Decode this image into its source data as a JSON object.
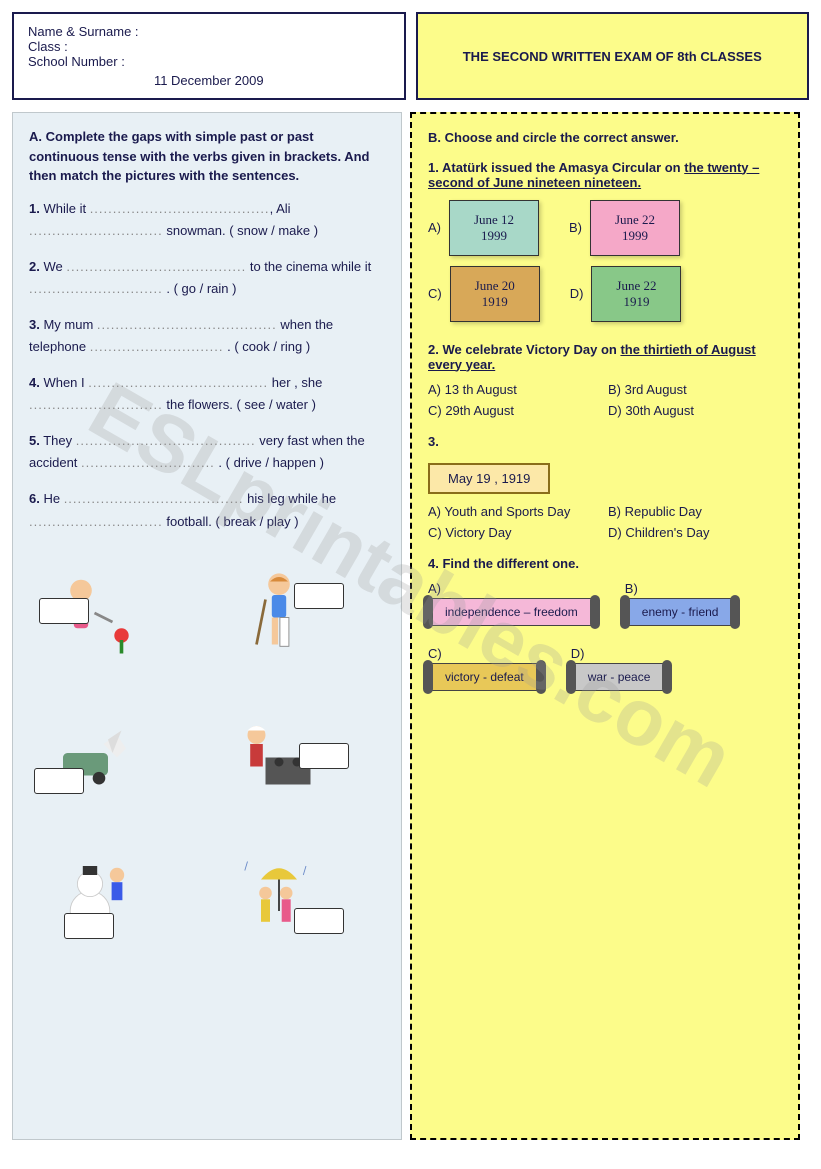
{
  "header": {
    "name_label": "Name & Surname :",
    "class_label": "Class :",
    "number_label": "School Number :",
    "date": "11  December  2009",
    "title": "THE  SECOND   WRITTEN  EXAM  OF  8th CLASSES"
  },
  "sectionA": {
    "title": "A. Complete  the  gaps  with simple past  or past continuous  tense  with  the  verbs given  in  brackets. And  then  match the pictures with the sentences.",
    "items": [
      {
        "n": "1.",
        "text_a": "While it ",
        "text_b": ", Ali ",
        "text_c": " snowman.  ( snow / make )"
      },
      {
        "n": "2.",
        "text_a": "We ",
        "text_b": " to the cinema while  it ",
        "text_c": " .   ( go / rain )"
      },
      {
        "n": "3.",
        "text_a": "My mum ",
        "text_b": " when the  telephone ",
        "text_c": " . ( cook / ring )"
      },
      {
        "n": "4.",
        "text_a": "When  I ",
        "text_b": " her , she ",
        "text_c": " the flowers. ( see / water )"
      },
      {
        "n": "5.",
        "text_a": "They ",
        "text_b": " very fast  when  the accident ",
        "text_c": " . ( drive / happen )"
      },
      {
        "n": "6.",
        "text_a": "He ",
        "text_b": " his leg  while  he ",
        "text_c": " football.  ( break / play )"
      }
    ]
  },
  "sectionB": {
    "title": "B.  Choose  and  circle  the  correct  answer.",
    "q1": {
      "text_a": "1.  Atatürk  issued  the Amasya  Circular on ",
      "text_u": "the twenty – second of June  nineteen nineteen.",
      "opts": [
        {
          "l": "A)",
          "d1": "June 12",
          "d2": "1999",
          "bg": "#a8d8c8"
        },
        {
          "l": "B)",
          "d1": "June 22",
          "d2": "1999",
          "bg": "#f5a8c8"
        },
        {
          "l": "C)",
          "d1": "June 20",
          "d2": "1919",
          "bg": "#d8a858"
        },
        {
          "l": "D)",
          "d1": "June 22",
          "d2": "1919",
          "bg": "#88c888"
        }
      ]
    },
    "q2": {
      "text_a": "2.  We  celebrate  Victory Day  on  ",
      "text_u": "the thirtieth of August  every  year.",
      "opts": [
        "A) 13 th August",
        "B)  3rd August",
        "C) 29th August",
        "D) 30th August"
      ]
    },
    "q3": {
      "n": "3.",
      "box": "May  19 , 1919",
      "opts": [
        "A) Youth and Sports Day",
        "B) Republic Day",
        "C) Victory Day",
        "D) Children's Day"
      ]
    },
    "q4": {
      "title": "4.  Find  the  different  one.",
      "opts": [
        {
          "l": "A)",
          "t": "independence – freedom",
          "bg": "#f5b8d8"
        },
        {
          "l": "B)",
          "t": "enemy - friend",
          "bg": "#88a8e8"
        },
        {
          "l": "C)",
          "t": "victory - defeat",
          "bg": "#e8c858"
        },
        {
          "l": "D)",
          "t": "war - peace",
          "bg": "#c8c8c8"
        }
      ]
    }
  },
  "watermark": "ESLprintables.com",
  "dots_short": ".............................",
  "dots_long": "......................................."
}
